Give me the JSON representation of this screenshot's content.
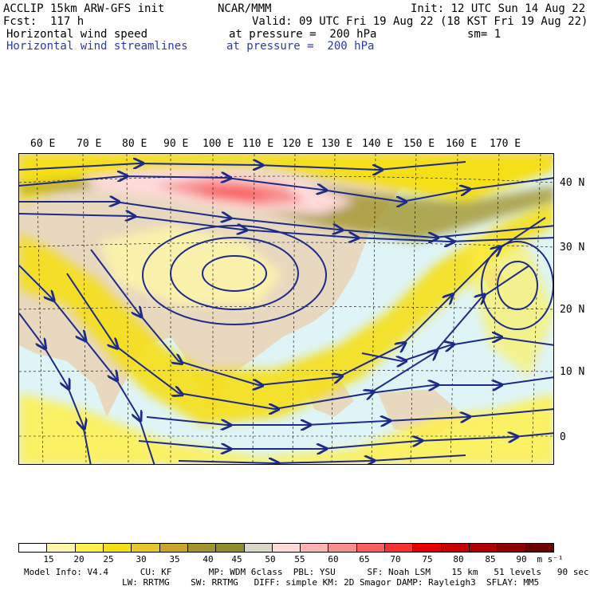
{
  "header": {
    "model": "ACCLIP 15km ARW-GFS init",
    "org": "NCAR/MMM",
    "init": "Init: 12 UTC Sun 14 Aug 22",
    "fcst": "Fcst:  117 h",
    "valid": "Valid: 09 UTC Fri 19 Aug 22 (18 KST Fri 19 Aug 22)",
    "field1": "Horizontal wind speed",
    "field1_level": "at pressure =  200 hPa",
    "smooth": "sm= 1",
    "field2": "Horizontal wind streamlines",
    "field2_level": "at pressure =  200 hPa"
  },
  "map": {
    "lon_labels": [
      "60 E",
      "70 E",
      "80 E",
      "90 E",
      "100 E",
      "110 E",
      "120 E",
      "130 E",
      "140 E",
      "150 E",
      "160 E",
      "170 E"
    ],
    "lat_labels": [
      "40 N",
      "30 N",
      "20 N",
      "10 N",
      "0"
    ],
    "colors": {
      "ocean": "#dff4f7",
      "land": "#e8d8bf",
      "stream": "#1c2a8a"
    }
  },
  "colorbar": {
    "ticks": [
      "15",
      "20",
      "25",
      "30",
      "35",
      "40",
      "45",
      "50",
      "55",
      "60",
      "65",
      "70",
      "75",
      "80",
      "85",
      "90"
    ],
    "unit": "m s⁻¹",
    "colors": [
      "#ffffff",
      "#fff7a8",
      "#fff04a",
      "#f5df18",
      "#e8c72a",
      "#c9a62a",
      "#a2952c",
      "#8d8d2a",
      "#d9d8c6",
      "#ffdada",
      "#ffb3b3",
      "#f88e8e",
      "#f86060",
      "#f83232",
      "#e80000",
      "#c80000",
      "#b00000",
      "#8f0000",
      "#6c0000"
    ]
  },
  "footer": {
    "line1": "Model Info: V4.4      CU: KF       MP: WDM 6class  PBL: YSU      SF: Noah LSM    15 km   51 levels   90 sec",
    "line2": "LW: RRTMG    SW: RRTMG   DIFF: simple KM: 2D Smagor DAMP: Rayleigh3  SFLAY: MM5"
  }
}
